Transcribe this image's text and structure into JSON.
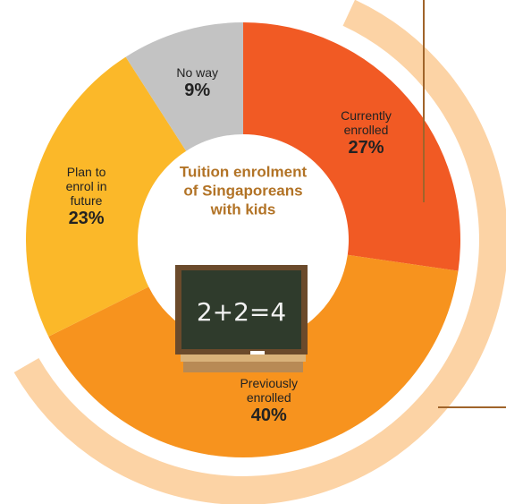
{
  "chart_data": {
    "type": "donut",
    "title": "Tuition enrolment of Singaporeans with kids",
    "categories": [
      "Currently enrolled",
      "Previously enrolled",
      "Plan to enrol in future",
      "No way"
    ],
    "values": [
      27,
      40,
      23,
      9
    ],
    "value_labels": [
      "27%",
      "40%",
      "23%",
      "9%"
    ],
    "colors": [
      "#f15a24",
      "#f7931e",
      "#fbb829",
      "#c3c3c3"
    ]
  }
}
